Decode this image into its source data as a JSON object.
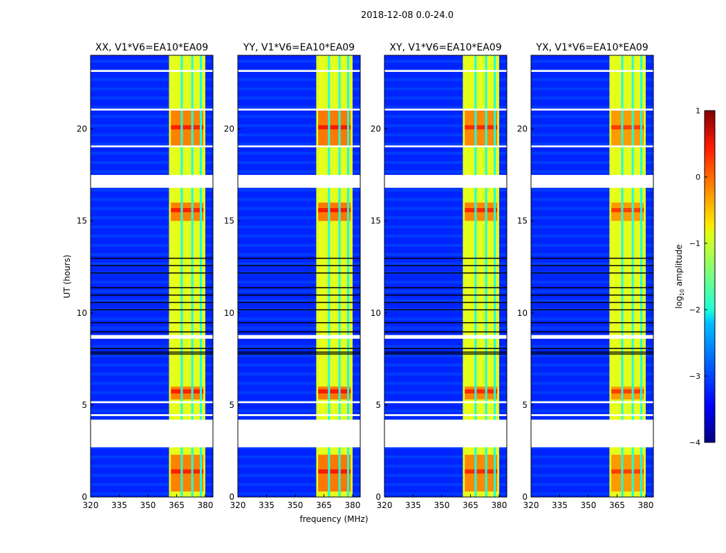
{
  "chart_data": {
    "type": "heatmap",
    "title": "2018-12-08 0.0-24.0",
    "xlabel": "frequency (MHz)",
    "ylabel": "UT (hours)",
    "xlim": [
      320,
      384
    ],
    "ylim": [
      0,
      24
    ],
    "xticks": [
      "320",
      "335",
      "350",
      "365",
      "380"
    ],
    "xtick_values": [
      320,
      335,
      350,
      365,
      380
    ],
    "yticks": [
      "0",
      "5",
      "10",
      "15",
      "20"
    ],
    "ytick_values": [
      0,
      5,
      10,
      15,
      20
    ],
    "panels": [
      {
        "title": "XX, V1*V6=EA10*EA09",
        "hot_level": 0.35
      },
      {
        "title": "YY, V1*V6=EA10*EA09",
        "hot_level": 0.4
      },
      {
        "title": "XY, V1*V6=EA10*EA09",
        "hot_level": 0.3
      },
      {
        "title": "YX, V1*V6=EA10*EA09",
        "hot_level": 0.2
      }
    ],
    "background_level": -3.2,
    "band_mhz": [
      361,
      380
    ],
    "band_level": -1.0,
    "channel_gaps_mhz": [
      367.5,
      373,
      377.5
    ],
    "flagged_hours": [
      [
        2.7,
        4.2
      ],
      [
        16.8,
        17.5
      ],
      [
        8.6,
        8.8
      ],
      [
        23.1,
        23.2
      ],
      [
        21.0,
        21.1
      ],
      [
        19.0,
        19.1
      ],
      [
        5.1,
        5.2
      ],
      [
        4.4,
        4.5
      ]
    ],
    "bright_hours": [
      [
        19.0,
        21.0
      ],
      [
        15.0,
        16.0
      ],
      [
        5.3,
        6.0
      ],
      [
        0.3,
        2.3
      ]
    ],
    "colorbar": {
      "label": "log10 amplitude",
      "range": [
        -4,
        1
      ],
      "ticks": [
        "1",
        "0",
        "−1",
        "−2",
        "−3",
        "−4"
      ],
      "tick_values": [
        1,
        0,
        -1,
        -2,
        -3,
        -4
      ],
      "colormap": "jet"
    }
  }
}
